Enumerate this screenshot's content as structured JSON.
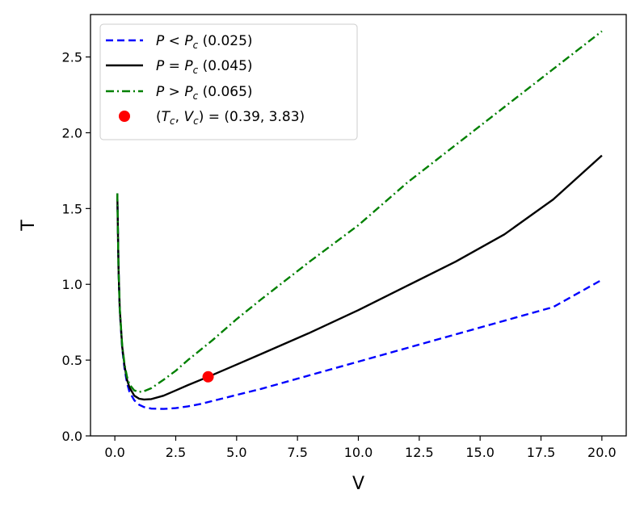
{
  "chart_data": {
    "type": "line",
    "title": "",
    "xlabel": "V",
    "ylabel": "T",
    "xlim": [
      -1,
      21
    ],
    "ylim": [
      0,
      2.78
    ],
    "xticks": [
      0.0,
      2.5,
      5.0,
      7.5,
      10.0,
      12.5,
      15.0,
      17.5,
      20.0
    ],
    "xtick_labels": [
      "0.0",
      "2.5",
      "5.0",
      "7.5",
      "10.0",
      "12.5",
      "15.0",
      "17.5",
      "20.0"
    ],
    "yticks": [
      0.0,
      0.5,
      1.0,
      1.5,
      2.0,
      2.5
    ],
    "ytick_labels": [
      "0.0",
      "0.5",
      "1.0",
      "1.5",
      "2.0",
      "2.5"
    ],
    "grid": false,
    "legend_position": "top-left",
    "series": [
      {
        "name": "P < Pc (0.025)",
        "legend": {
          "var": "P",
          "op": "<",
          "sub_var": "P",
          "sub": "c",
          "tail": " (0.025)"
        },
        "color": "#0000ff",
        "style": "dashed",
        "x": [
          0.1,
          0.15,
          0.2,
          0.3,
          0.4,
          0.5,
          0.6,
          0.8,
          1.0,
          1.2,
          1.5,
          2.0,
          2.5,
          3.0,
          3.5,
          4.0,
          5.0,
          6.0,
          8.0,
          10.0,
          12.0,
          14.0,
          16.0,
          18.0,
          20.0
        ],
        "y": [
          1.6,
          1.1,
          0.83,
          0.58,
          0.44,
          0.35,
          0.29,
          0.235,
          0.205,
          0.19,
          0.18,
          0.178,
          0.183,
          0.195,
          0.21,
          0.23,
          0.27,
          0.31,
          0.4,
          0.49,
          0.58,
          0.67,
          0.76,
          0.85,
          1.03
        ]
      },
      {
        "name": "P = Pc (0.045)",
        "legend": {
          "var": "P",
          "op": "=",
          "sub_var": "P",
          "sub": "c",
          "tail": " (0.045)"
        },
        "color": "#000000",
        "style": "solid",
        "x": [
          0.1,
          0.15,
          0.2,
          0.3,
          0.4,
          0.5,
          0.6,
          0.8,
          1.0,
          1.2,
          1.5,
          2.0,
          2.5,
          3.0,
          3.83,
          5.0,
          6.0,
          8.0,
          10.0,
          12.0,
          14.0,
          16.0,
          18.0,
          20.0
        ],
        "y": [
          1.6,
          1.1,
          0.84,
          0.59,
          0.46,
          0.37,
          0.32,
          0.265,
          0.245,
          0.24,
          0.243,
          0.265,
          0.3,
          0.335,
          0.39,
          0.47,
          0.54,
          0.68,
          0.83,
          0.99,
          1.15,
          1.33,
          1.56,
          1.85
        ]
      },
      {
        "name": "P > Pc (0.065)",
        "legend": {
          "var": "P",
          "op": ">",
          "sub_var": "P",
          "sub": "c",
          "tail": " (0.065)"
        },
        "color": "#008000",
        "style": "dashdot",
        "x": [
          0.1,
          0.15,
          0.2,
          0.3,
          0.4,
          0.5,
          0.6,
          0.8,
          1.0,
          1.2,
          1.5,
          2.0,
          2.5,
          3.0,
          4.0,
          5.0,
          6.0,
          8.0,
          10.0,
          12.0,
          14.0,
          16.0,
          18.0,
          20.0
        ],
        "y": [
          1.6,
          1.1,
          0.84,
          0.6,
          0.47,
          0.39,
          0.34,
          0.3,
          0.29,
          0.295,
          0.315,
          0.37,
          0.43,
          0.5,
          0.63,
          0.77,
          0.9,
          1.15,
          1.39,
          1.67,
          1.92,
          2.17,
          2.42,
          2.67
        ]
      }
    ],
    "critical_point": {
      "label": "(Tc, Vc) = (0.39, 3.83)",
      "legend": {
        "tc": "T",
        "vc": "V",
        "sub": "c",
        "tail": " = (0.39, 3.83)"
      },
      "V": 3.83,
      "T": 0.39,
      "color": "#ff0000"
    }
  }
}
